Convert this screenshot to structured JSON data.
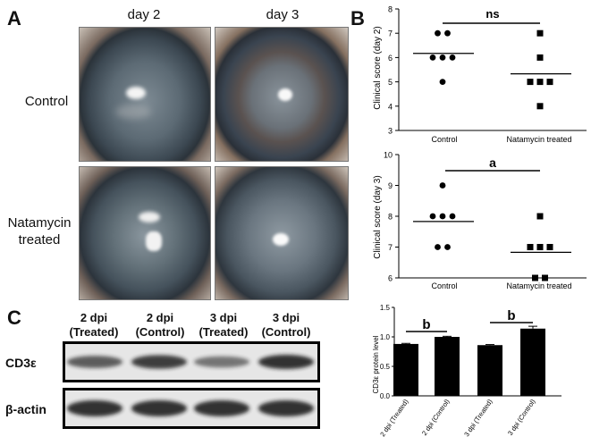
{
  "panel_labels": {
    "a": "A",
    "b": "B",
    "c": "C"
  },
  "panel_a": {
    "col_headers": [
      "day 2",
      "day 3"
    ],
    "row_labels": [
      "Control",
      "Natamycin treated"
    ]
  },
  "chart_data": [
    {
      "type": "scatter",
      "ylabel": "Clinical score (day 2)",
      "categories": [
        "Control",
        "Natamycin treated"
      ],
      "ylim": [
        3,
        8
      ],
      "yticks": [
        3,
        4,
        5,
        6,
        7,
        8
      ],
      "series": [
        {
          "marker": "circle",
          "category": "Control",
          "values": [
            7,
            7,
            6,
            6,
            6,
            5
          ],
          "mean": 6.17
        },
        {
          "marker": "square",
          "category": "Natamycin treated",
          "values": [
            7,
            6,
            5,
            5,
            5,
            4
          ],
          "mean": 5.33
        }
      ],
      "significance": "ns"
    },
    {
      "type": "scatter",
      "ylabel": "Clinical score (day 3)",
      "categories": [
        "Control",
        "Natamycin treated"
      ],
      "ylim": [
        6,
        10
      ],
      "yticks": [
        6,
        7,
        8,
        9,
        10
      ],
      "series": [
        {
          "marker": "circle",
          "category": "Control",
          "values": [
            9,
            8,
            8,
            8,
            7,
            7
          ],
          "mean": 7.83
        },
        {
          "marker": "square",
          "category": "Natamycin treated",
          "values": [
            8,
            7,
            7,
            7,
            6,
            6
          ],
          "mean": 6.83
        }
      ],
      "significance": "a"
    },
    {
      "type": "bar",
      "ylabel": "CD3ε protein level",
      "categories": [
        "2 dpi (Treated)",
        "2 dpi (Control)",
        "3 dpi (Treated)",
        "3 dpi (Control)"
      ],
      "values": [
        0.88,
        1.0,
        0.86,
        1.14
      ],
      "errors": [
        0.01,
        0.01,
        0.01,
        0.04
      ],
      "ylim": [
        0,
        1.5
      ],
      "yticks": [
        "0.0",
        "0.5",
        "1.0",
        "1.5"
      ],
      "significance": [
        "b",
        "b"
      ]
    }
  ],
  "panel_c": {
    "lane_labels": [
      {
        "line1": "2 dpi",
        "line2": "(Treated)"
      },
      {
        "line1": "2 dpi",
        "line2": "(Control)"
      },
      {
        "line1": "3 dpi",
        "line2": "(Treated)"
      },
      {
        "line1": "3 dpi",
        "line2": "(Control)"
      }
    ],
    "row_names": [
      "CD3ε",
      "β-actin"
    ],
    "band_intensity": {
      "CD3ε": [
        0.55,
        0.8,
        0.35,
        0.9
      ],
      "β-actin": [
        0.9,
        0.9,
        0.9,
        0.9
      ]
    }
  },
  "colors": {
    "marker": "#000000",
    "bar": "#000000",
    "band": "#1a1a1a"
  }
}
